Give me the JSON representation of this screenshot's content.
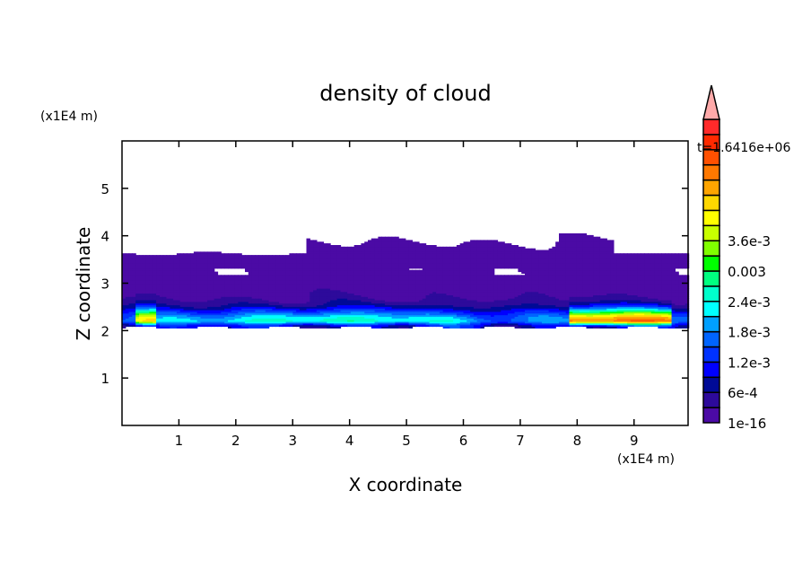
{
  "chart_data": {
    "type": "heatmap",
    "title": "density of cloud",
    "xlabel": "X coordinate",
    "ylabel": "Z coordinate",
    "x_unit": "(x1E4 m)",
    "y_unit": "(x1E4 m)",
    "time_label": "t=1.6416e+06",
    "xlim": [
      0,
      9.95
    ],
    "ylim": [
      0,
      6
    ],
    "xticks": [
      "1",
      "2",
      "3",
      "4",
      "5",
      "6",
      "7",
      "8",
      "9"
    ],
    "yticks": [
      "1",
      "2",
      "3",
      "4",
      "5"
    ],
    "colorbar": {
      "labels": [
        "1e-16",
        "6e-4",
        "1.2e-3",
        "1.8e-3",
        "2.4e-3",
        "0.003",
        "3.6e-3"
      ],
      "level_step": 0.0003,
      "extend": "max",
      "colors": [
        "#4b0aa5",
        "#2d0a9b",
        "#000a96",
        "#0000ff",
        "#0032ff",
        "#0064ff",
        "#00a0ff",
        "#00ffff",
        "#00ffcc",
        "#00ff80",
        "#00ff00",
        "#80ff00",
        "#c8ff00",
        "#ffff00",
        "#ffd700",
        "#ffa500",
        "#ff7800",
        "#ff5000",
        "#ff2a00",
        "#ff2a2a"
      ],
      "extend_color": "#ffaaaa"
    },
    "field_description_regions": {
      "cloud_layer_z": [
        2.05,
        3.6
      ],
      "upper_patches_z": [
        3.6,
        4.0
      ],
      "max_density_x": [
        0.2,
        0.6
      ],
      "secondary_max_x": [
        7.8,
        9.6
      ]
    }
  }
}
